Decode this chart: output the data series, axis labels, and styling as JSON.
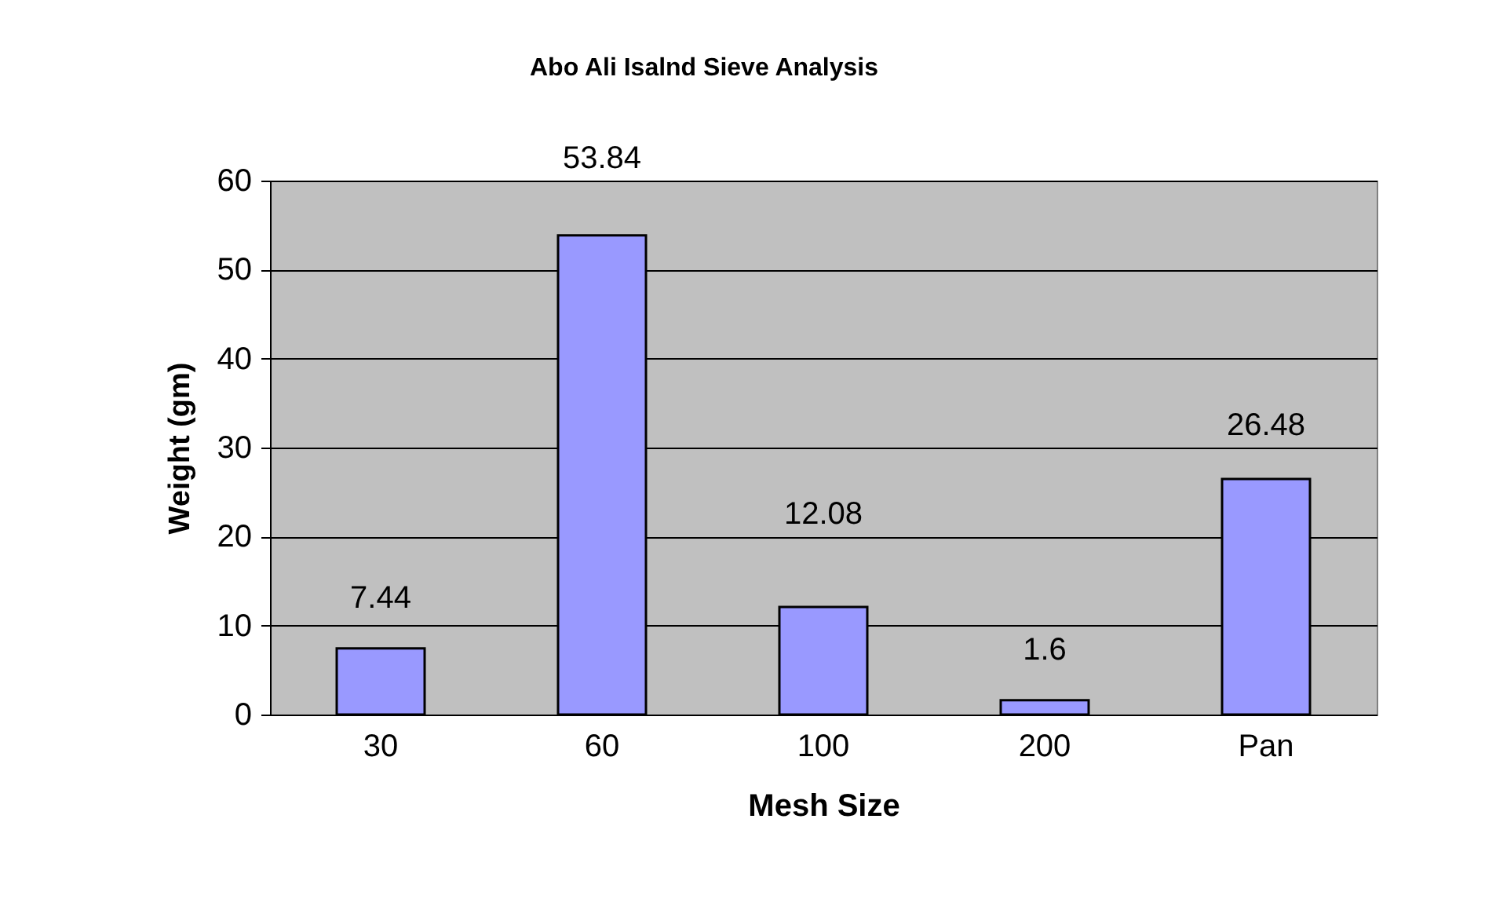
{
  "chart_data": {
    "type": "bar",
    "title": "Abo Ali Isalnd Sieve Analysis",
    "xlabel": "Mesh Size",
    "ylabel": "Weight (gm)",
    "categories": [
      "30",
      "60",
      "100",
      "200",
      "Pan"
    ],
    "values": [
      7.44,
      53.84,
      12.08,
      1.6,
      26.48
    ],
    "color": "#9999ff",
    "ylim": [
      0,
      60
    ],
    "yticks": [
      0,
      10,
      20,
      30,
      40,
      50,
      60
    ],
    "grid": "y",
    "data_labels": true,
    "legend": false
  }
}
